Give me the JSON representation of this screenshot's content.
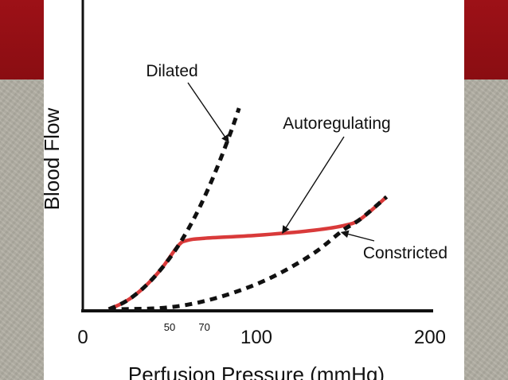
{
  "colors": {
    "band": "#9d1117",
    "panel": "#ffffff",
    "curve_dashed": "#111111",
    "curve_autoregulating": "#d93a3a"
  },
  "chart_data": {
    "type": "line",
    "title": "",
    "xlabel": "Perfusion Pressure (mmHg)",
    "ylabel": "Blood Flow",
    "xlim": [
      0,
      200
    ],
    "x_ticks": [
      {
        "value": 0,
        "label": "0"
      },
      {
        "value": 100,
        "label": "100"
      },
      {
        "value": 200,
        "label": "200"
      }
    ],
    "x_minor_ticks": [
      {
        "value": 50,
        "label": "50"
      },
      {
        "value": 70,
        "label": "70"
      }
    ],
    "y_ticks_shown": false,
    "grid": false,
    "legend": "none",
    "series": [
      {
        "name": "Dilated",
        "style": "dashed",
        "x": [
          15,
          25,
          35,
          45,
          55,
          65,
          75,
          85,
          90
        ],
        "y": [
          0.0,
          0.55,
          1.45,
          2.7,
          4.3,
          6.35,
          8.9,
          11.9,
          13.6
        ]
      },
      {
        "name": "Autoregulating",
        "style": "solid",
        "x": [
          15,
          25,
          35,
          45,
          55,
          60,
          70,
          100,
          130,
          150,
          160,
          175
        ],
        "y": [
          0.0,
          0.55,
          1.45,
          2.7,
          4.3,
          4.65,
          4.8,
          5.0,
          5.3,
          5.65,
          6.1,
          7.6
        ]
      },
      {
        "name": "Constricted",
        "style": "dashed",
        "x": [
          15,
          30,
          45,
          60,
          75,
          90,
          105,
          120,
          135,
          150,
          160,
          175
        ],
        "y": [
          0.0,
          0.02,
          0.08,
          0.3,
          0.7,
          1.25,
          1.95,
          2.85,
          3.95,
          5.35,
          6.1,
          7.6
        ]
      }
    ],
    "annotations": [
      {
        "text": "Dilated",
        "target_x": 84,
        "target_y": 11.3
      },
      {
        "text": "Autoregulating",
        "target_x": 115,
        "target_y": 5.15
      },
      {
        "text": "Constricted",
        "target_x": 149,
        "target_y": 5.2
      }
    ]
  }
}
